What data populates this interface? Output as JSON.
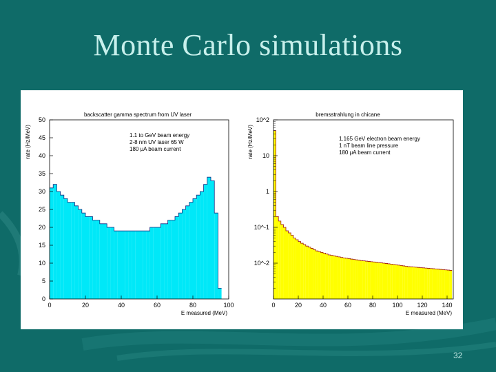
{
  "slide": {
    "title": "Monte Carlo simulations",
    "page_number": "32",
    "background_color": "#0f6b68",
    "title_color": "#c8f0ec"
  },
  "chart_data": [
    {
      "type": "bar",
      "title": "backscatter gamma spectrum from UV laser",
      "xlabel": "E measured (MeV)",
      "ylabel": "rate (Hz/MeV)",
      "xlim": [
        0,
        100
      ],
      "ylim": [
        0,
        50
      ],
      "xticks": [
        0,
        20,
        40,
        60,
        80,
        100
      ],
      "yticks": [
        0,
        5,
        10,
        15,
        20,
        25,
        30,
        35,
        40,
        45,
        50
      ],
      "annotations": [
        "1.1 to GeV beam energy",
        "2-8 nm UV laser 65 W",
        "180 μA beam current"
      ],
      "fill_color": "#00e8f8",
      "bin_width": 2,
      "x": [
        0,
        2,
        4,
        6,
        8,
        10,
        12,
        14,
        16,
        18,
        20,
        22,
        24,
        26,
        28,
        30,
        32,
        34,
        36,
        38,
        40,
        42,
        44,
        46,
        48,
        50,
        52,
        54,
        56,
        58,
        60,
        62,
        64,
        66,
        68,
        70,
        72,
        74,
        76,
        78,
        80,
        82,
        84,
        86,
        88,
        90,
        92,
        94
      ],
      "values": [
        31,
        32,
        30,
        29,
        28,
        27,
        27,
        26,
        25,
        24,
        23,
        23,
        22,
        22,
        21,
        21,
        20,
        20,
        19,
        19,
        19,
        19,
        19,
        19,
        19,
        19,
        19,
        19,
        20,
        20,
        20,
        21,
        21,
        22,
        22,
        23,
        24,
        25,
        26,
        27,
        28,
        29,
        30,
        32,
        34,
        33,
        24,
        3
      ]
    },
    {
      "type": "bar",
      "title": "bremsstrahlung in chicane",
      "xlabel": "E measured (MeV)",
      "ylabel": "rate (Hz/MeV)",
      "xlim": [
        0,
        145
      ],
      "ylim_log10": [
        -3,
        2
      ],
      "log_scale_y": true,
      "xticks": [
        0,
        20,
        40,
        60,
        80,
        100,
        120,
        140
      ],
      "ytick_labels": [
        "10^2",
        "10",
        "1",
        "10^-1",
        "10^-2"
      ],
      "annotations": [
        "1.165 GeV electron beam energy",
        "1 nT beam line pressure",
        "180 μA beam current"
      ],
      "fill_color": "#ffff00",
      "bin_width": 2,
      "x": [
        0,
        2,
        4,
        6,
        8,
        10,
        12,
        14,
        16,
        18,
        20,
        22,
        24,
        26,
        28,
        30,
        32,
        34,
        36,
        38,
        40,
        42,
        44,
        46,
        48,
        50,
        52,
        54,
        56,
        58,
        60,
        62,
        64,
        66,
        68,
        70,
        72,
        74,
        76,
        78,
        80,
        82,
        84,
        86,
        88,
        90,
        92,
        94,
        96,
        98,
        100,
        102,
        104,
        106,
        108,
        110,
        112,
        114,
        116,
        118,
        120,
        122,
        124,
        126,
        128,
        130,
        132,
        134,
        136,
        138,
        140,
        142
      ],
      "values": [
        50,
        0.2,
        0.15,
        0.12,
        0.1,
        0.08,
        0.07,
        0.06,
        0.05,
        0.045,
        0.04,
        0.036,
        0.033,
        0.03,
        0.028,
        0.026,
        0.024,
        0.022,
        0.021,
        0.02,
        0.019,
        0.018,
        0.017,
        0.0165,
        0.016,
        0.0155,
        0.015,
        0.0145,
        0.014,
        0.0137,
        0.0134,
        0.013,
        0.0127,
        0.0124,
        0.0121,
        0.0118,
        0.0116,
        0.0114,
        0.0112,
        0.011,
        0.0108,
        0.0106,
        0.0104,
        0.0102,
        0.01,
        0.0098,
        0.0096,
        0.0094,
        0.0092,
        0.009,
        0.0088,
        0.0086,
        0.0084,
        0.0082,
        0.008,
        0.0079,
        0.0078,
        0.0077,
        0.0076,
        0.0075,
        0.0074,
        0.0073,
        0.0072,
        0.0071,
        0.007,
        0.0069,
        0.0068,
        0.0067,
        0.0066,
        0.0065,
        0.0064,
        0.0063
      ]
    }
  ]
}
